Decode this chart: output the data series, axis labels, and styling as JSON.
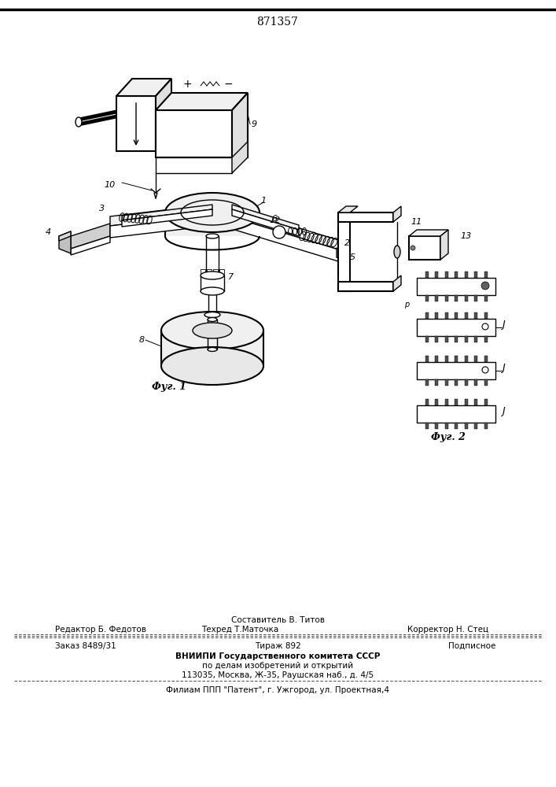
{
  "patent_number": "871357",
  "fig1_caption": "Фуг. 1",
  "fig2_caption": "Фуг. 2",
  "footer_sestavitel": "Составитель В. Титов",
  "footer_redaktor": "Редактор Б. Федотов",
  "footer_tehred": "Техред Т.Маточка",
  "footer_korrektor": "Корректор Н. Стец",
  "footer_zakaz": "Заказ 8489/31",
  "footer_tirazh": "Тираж 892",
  "footer_podpisnoe": "Подписное",
  "footer_vniip1": "ВНИИПИ Государственного комитета СССР",
  "footer_vniip2": "по делам изобретений и открытий",
  "footer_address": "113035, Москва, Ж-35, Раушская наб., д. 4/5",
  "footer_filial": "Филиам ППП \"Патент\", г. Ужгород, ул. Проектная,4",
  "bg_color": "#ffffff"
}
